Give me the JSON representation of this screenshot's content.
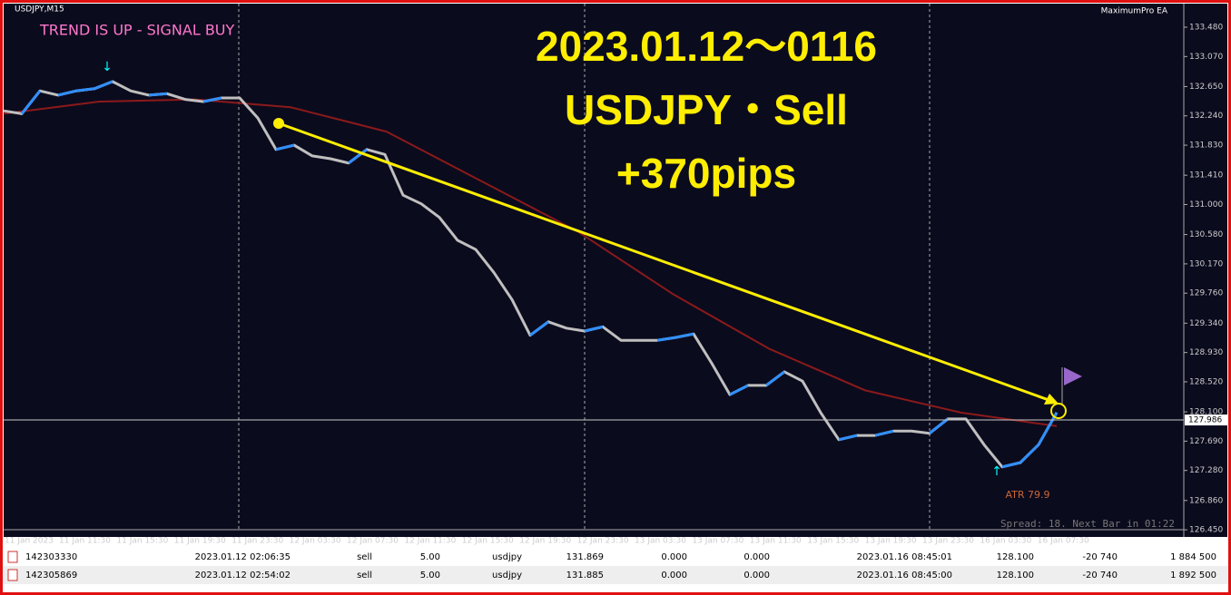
{
  "window": {
    "symbol": "USDJPY,M15",
    "ea": "MaximumPro EA",
    "signal": "TREND IS UP - SIGNAL BUY",
    "headline": [
      "2023.01.12～0116",
      "USDJPY・Sell",
      "+370pips"
    ],
    "atr": "ATR 79.9",
    "status": "Spread: 18. Next Bar in 01:22"
  },
  "chart": {
    "ylim": [
      126.35,
      133.81
    ],
    "yticks": [
      {
        "value": 133.48,
        "label": "133.480"
      },
      {
        "value": 133.07,
        "label": "133.070"
      },
      {
        "value": 132.65,
        "label": "132.650"
      },
      {
        "value": 132.24,
        "label": "132.240"
      },
      {
        "value": 131.83,
        "label": "131.830"
      },
      {
        "value": 131.41,
        "label": "131.410"
      },
      {
        "value": 131,
        "label": "131.000"
      },
      {
        "value": 130.58,
        "label": "130.580"
      },
      {
        "value": 130.17,
        "label": "130.170"
      },
      {
        "value": 129.76,
        "label": "129.760"
      },
      {
        "value": 129.34,
        "label": "129.340"
      },
      {
        "value": 128.93,
        "label": "128.930"
      },
      {
        "value": 128.52,
        "label": "128.520"
      },
      {
        "value": 128.1,
        "label": "128.100"
      },
      {
        "value": 127.69,
        "label": "127.690"
      },
      {
        "value": 127.28,
        "label": "127.280"
      },
      {
        "value": 126.86,
        "label": "126.860"
      },
      {
        "value": 126.45,
        "label": "126.450"
      }
    ],
    "xticks": [
      "11 Jan 2023",
      "11 Jan 11:30",
      "11 Jan 15:30",
      "11 Jan 19:30",
      "11 Jan 23:30",
      "12 Jan 03:30",
      "12 Jan 07:30",
      "12 Jan 11:30",
      "12 Jan 15:30",
      "12 Jan 19:30",
      "12 Jan 23:30",
      "13 Jan 03:30",
      "13 Jan 07:30",
      "13 Jan 11:30",
      "13 Jan 15:30",
      "13 Jan 19:30",
      "13 Jan 23:30",
      "16 Jan 03:30",
      "16 Jan 07:30"
    ],
    "price": [
      132.31,
      132.27,
      132.59,
      132.53,
      132.59,
      132.62,
      132.72,
      132.59,
      132.53,
      132.55,
      132.47,
      132.44,
      132.49,
      132.49,
      132.21,
      131.77,
      131.83,
      131.68,
      131.64,
      131.58,
      131.77,
      131.7,
      131.13,
      131.01,
      130.82,
      130.5,
      130.37,
      130.05,
      129.67,
      129.17,
      129.36,
      129.27,
      129.23,
      129.29,
      129.1,
      129.1,
      129.1,
      129.14,
      129.19,
      128.78,
      128.34,
      128.47,
      128.47,
      128.66,
      128.53,
      128.09,
      127.71,
      127.77,
      127.77,
      127.83,
      127.83,
      127.8,
      128.0,
      128.0,
      127.64,
      127.33,
      127.39,
      127.64,
      128.09
    ],
    "ma": [
      132.27,
      132.44,
      132.47,
      132.36,
      132.02,
      131.32,
      130.62,
      129.74,
      128.98,
      128.4,
      128.09,
      127.9
    ],
    "current_price": {
      "value": 127.986,
      "label": "127.986"
    }
  },
  "trades": {
    "rows": [
      [
        "142303330",
        "2023.01.12 02:06:35",
        "sell",
        "5.00",
        "usdjpy",
        "131.869",
        "0.000",
        "0.000",
        "2023.01.16 08:45:01",
        "128.100",
        "-20 740",
        "1 884 500"
      ],
      [
        "142305869",
        "2023.01.12 02:54:02",
        "sell",
        "5.00",
        "usdjpy",
        "131.885",
        "0.000",
        "0.000",
        "2023.01.16 08:45:00",
        "128.100",
        "-20 740",
        "1 892 500"
      ]
    ]
  }
}
